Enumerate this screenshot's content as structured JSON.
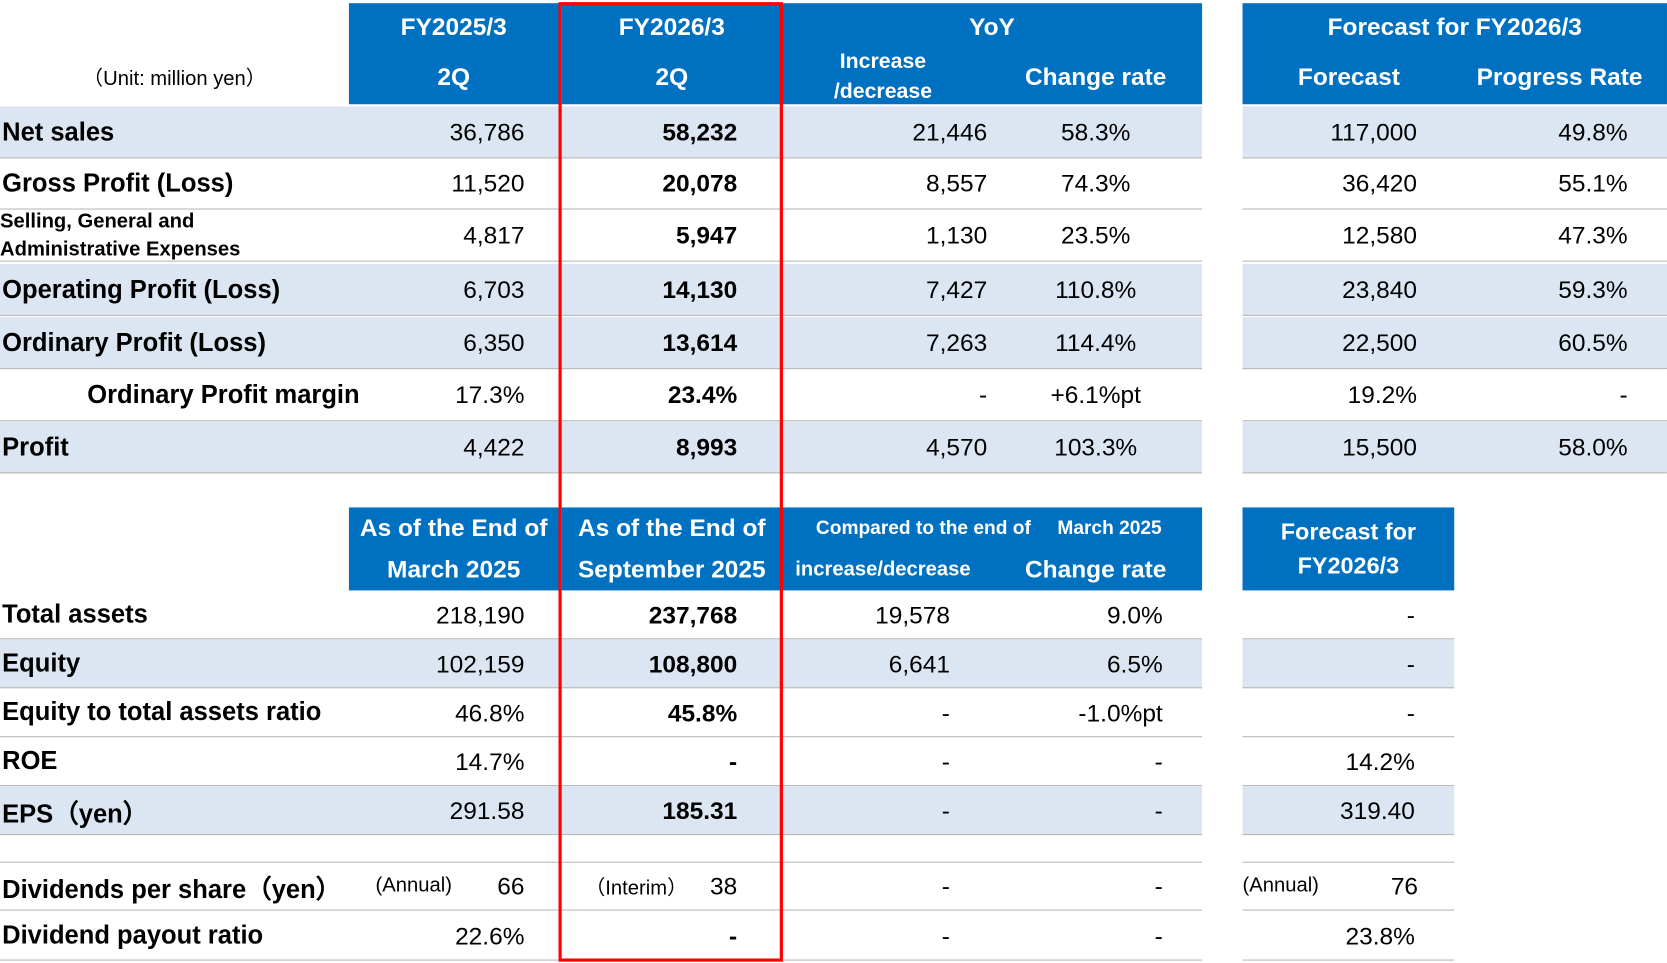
{
  "table1": {
    "unit": "（Unit: million yen）",
    "header": {
      "fy2025": "FY2025/3",
      "fy2025_sub": "2Q",
      "fy2026": "FY2026/3",
      "fy2026_sub": "2Q",
      "yoy": "YoY",
      "increase": [
        "Increase",
        "/decrease"
      ],
      "change_rate": "Change rate",
      "forecast_group": "Forecast for FY2026/3",
      "forecast": "Forecast",
      "progress": "Progress Rate"
    },
    "rows": [
      [
        "Net sales",
        "36,786",
        "58,232",
        "21,446",
        "58.3%",
        "117,000",
        "49.8%"
      ],
      [
        "Gross Profit (Loss)",
        "11,520",
        "20,078",
        "8,557",
        "74.3%",
        "36,420",
        "55.1%"
      ],
      [
        [
          "Selling, General and",
          "Administrative Expenses"
        ],
        "4,817",
        "5,947",
        "1,130",
        "23.5%",
        "12,580",
        "47.3%"
      ],
      [
        "Operating Profit (Loss)",
        "6,703",
        "14,130",
        "7,427",
        "110.8%",
        "23,840",
        "59.3%"
      ],
      [
        "Ordinary Profit (Loss)",
        "6,350",
        "13,614",
        "7,263",
        "114.4%",
        "22,500",
        "60.5%"
      ],
      [
        "Ordinary Profit margin",
        "17.3%",
        "23.4%",
        "-",
        "+6.1%pt",
        "19.2%",
        "-"
      ],
      [
        "Profit",
        "4,422",
        "8,993",
        "4,570",
        "103.3%",
        "15,500",
        "58.0%"
      ]
    ]
  },
  "table2": {
    "header": {
      "col1": [
        "As of the End of",
        "March 2025"
      ],
      "col2": [
        "As of the End of",
        "September 2025"
      ],
      "compared": [
        "Compared to the end of",
        "March 2025"
      ],
      "increase": "increase/decrease",
      "change_rate": "Change rate",
      "forecast": [
        "Forecast for",
        "FY2026/3"
      ]
    },
    "rows": [
      [
        "Total assets",
        "218,190",
        "237,768",
        "19,578",
        "9.0%",
        "-"
      ],
      [
        "Equity",
        "102,159",
        "108,800",
        "6,641",
        "6.5%",
        "-"
      ],
      [
        "Equity to total assets ratio",
        "46.8%",
        "45.8%",
        "-",
        "-1.0%pt",
        "-"
      ],
      [
        "ROE",
        "14.7%",
        "-",
        "-",
        "-",
        "14.2%"
      ],
      [
        "EPS（yen）",
        "291.58",
        "185.31",
        "-",
        "-",
        "319.40"
      ],
      [
        "Dividends per share（yen）",
        [
          "(Annual)",
          "66"
        ],
        [
          "（Interim）",
          "38"
        ],
        "-",
        "-",
        [
          "(Annual)",
          "76"
        ]
      ],
      [
        "Dividend payout ratio",
        "22.6%",
        "-",
        "-",
        "-",
        "23.8%"
      ]
    ]
  }
}
